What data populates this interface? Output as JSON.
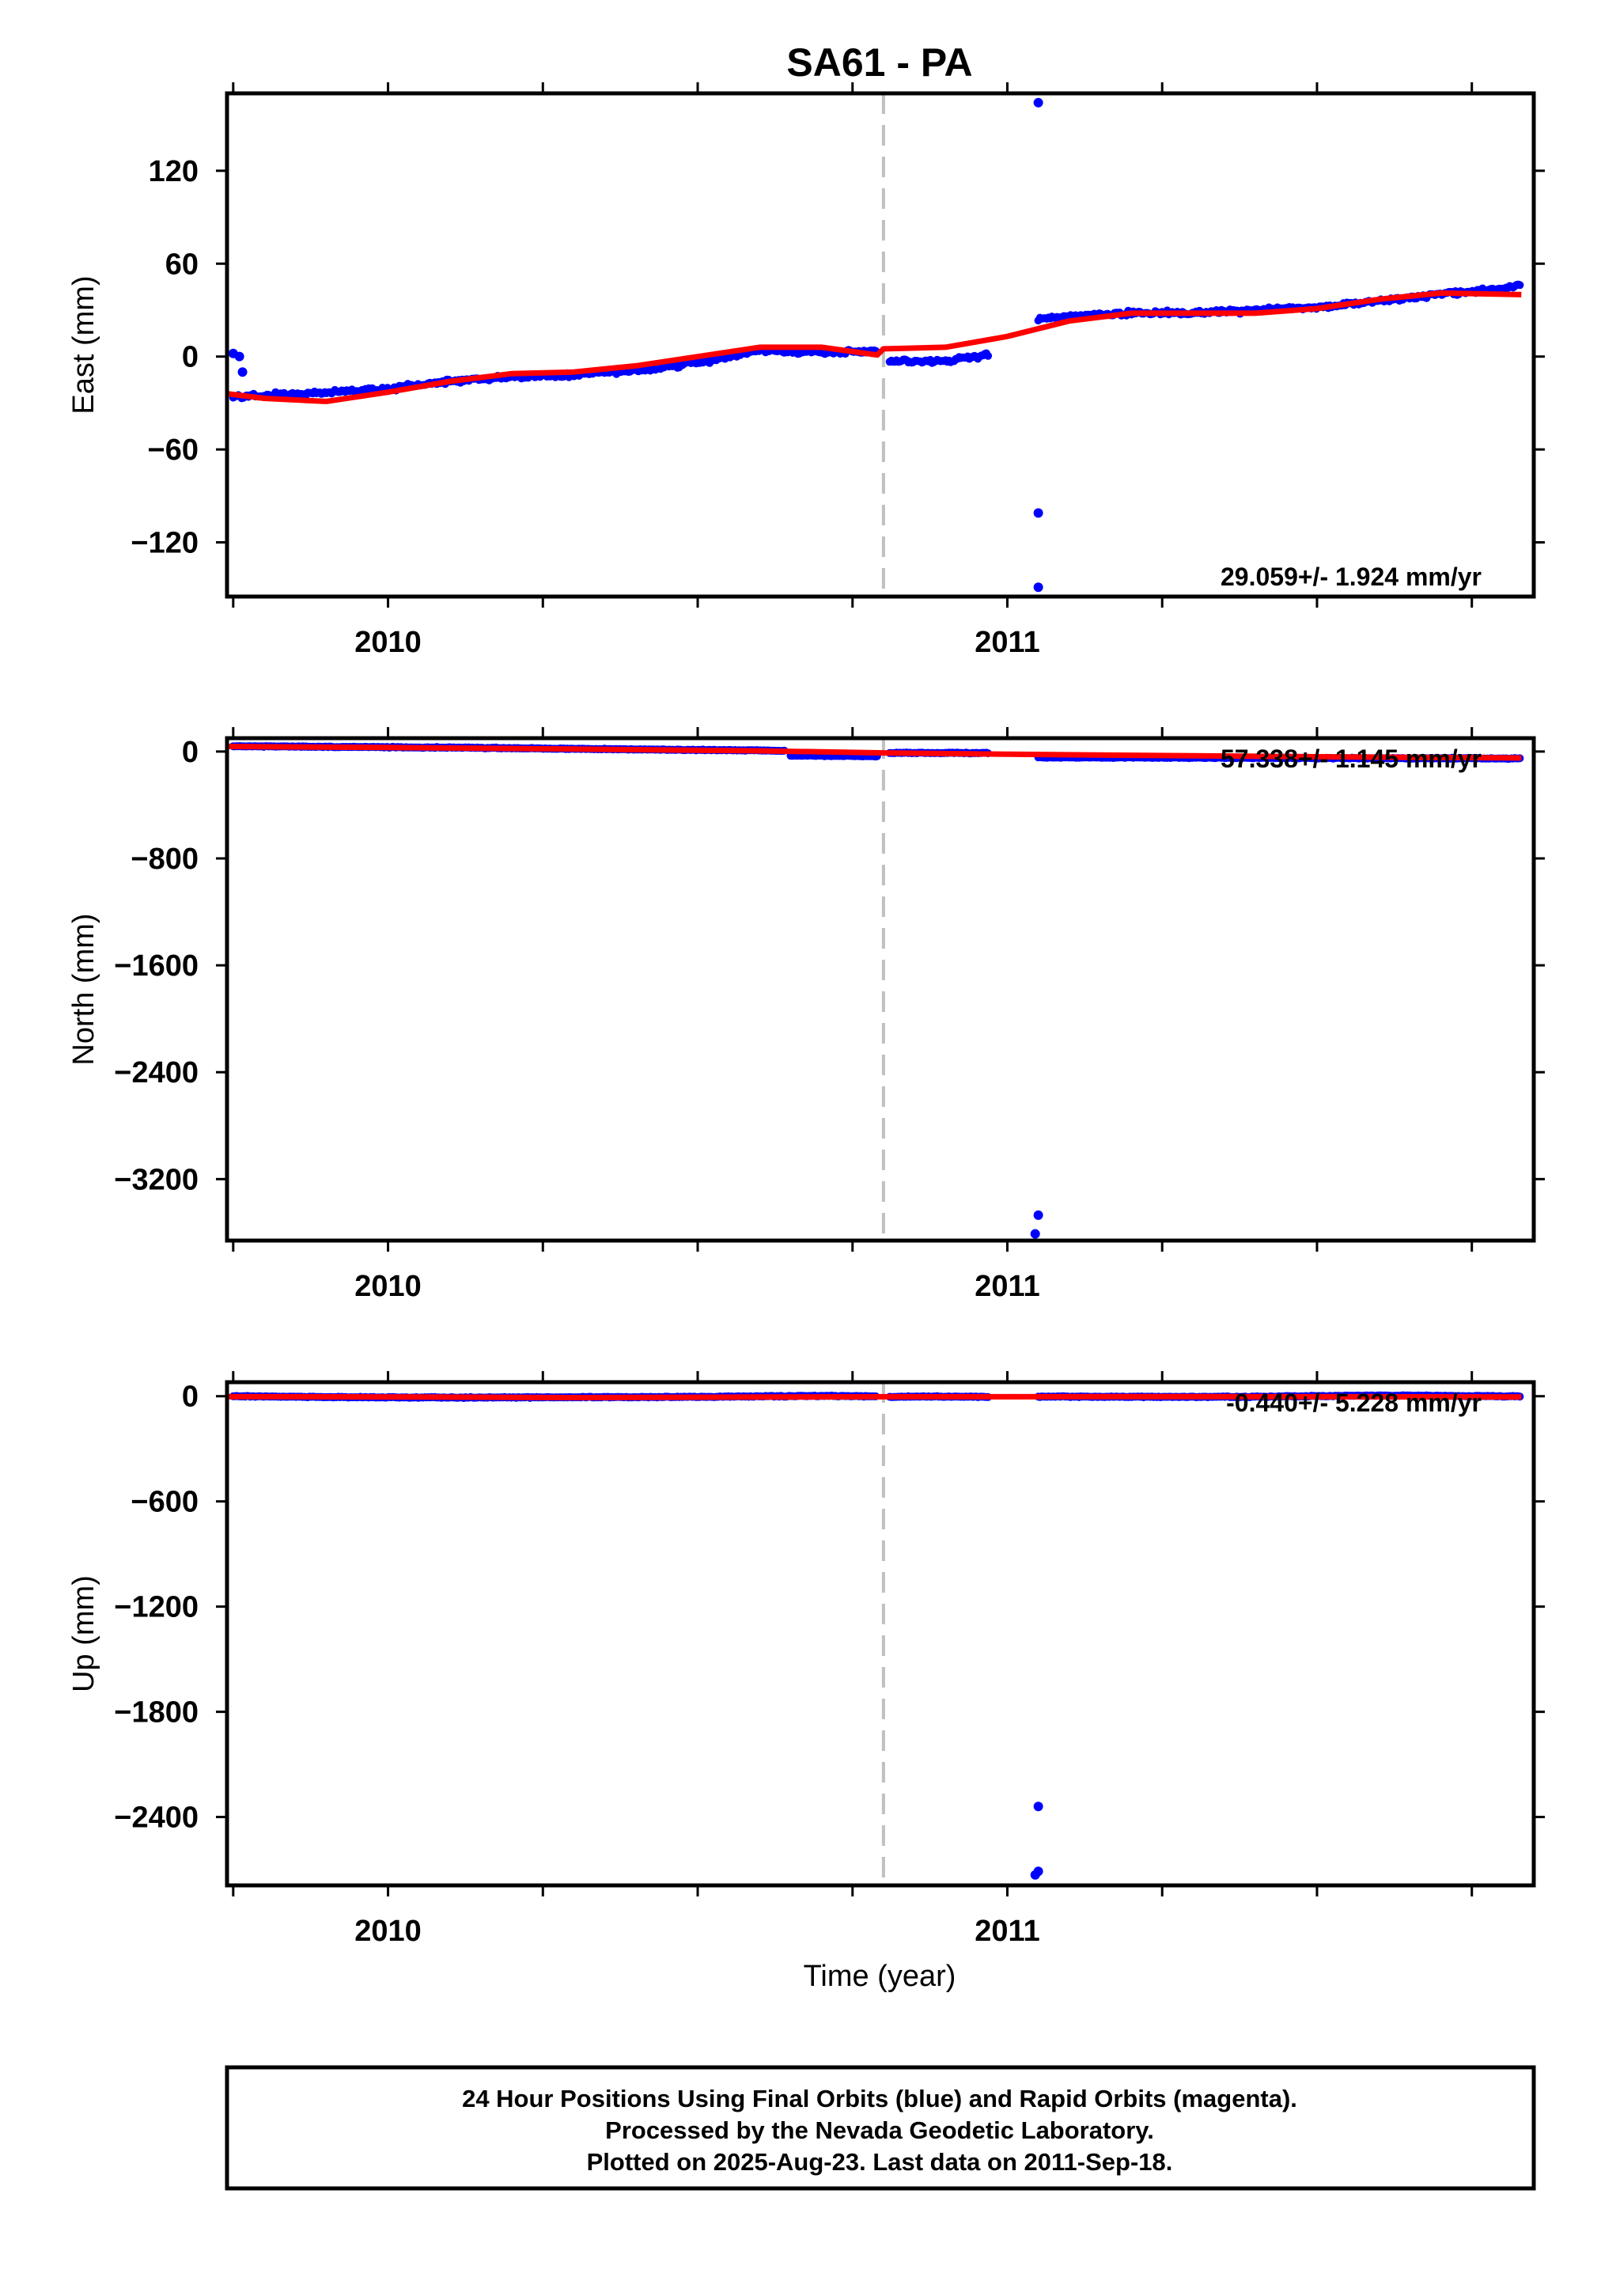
{
  "colors": {
    "final_orbits": "#0000ff",
    "rapid_orbits": "#ff00ff",
    "model_fit": "#ff0000",
    "equipment_change_line": "#c0c0c0",
    "frame": "#000000",
    "background": "#ffffff"
  },
  "footer": {
    "line1": "24 Hour Positions Using Final Orbits (blue) and Rapid Orbits (magenta).",
    "line2": "Processed by the Nevada Geodetic Laboratory.",
    "line3": "Plotted on 2025-Aug-23. Last data on 2011-Sep-18."
  },
  "chart_data": {
    "type": "scatter",
    "title": "SA61 - PA",
    "xlabel": "Time (year)",
    "xlim": [
      2009.74,
      2011.85
    ],
    "x_tick_labels": [
      "2010",
      "2011"
    ],
    "x_major_ticks": [
      2010,
      2011
    ],
    "x_minor_ticks": [
      2009.75,
      2010.25,
      2010.5,
      2010.75,
      2011.25,
      2011.5,
      2011.75
    ],
    "vertical_marker_x": 2010.8,
    "panels": [
      {
        "name": "east",
        "ylabel": "East (mm)",
        "ylim": [
          -155,
          170
        ],
        "y_ticks": [
          -120,
          -60,
          0,
          60,
          120
        ],
        "y_tick_labels": [
          "−120",
          "−60",
          "0",
          "60",
          "120"
        ],
        "rate_label": "29.059+/- 1.924 mm/yr",
        "final_orbit_segments": [
          {
            "x": [
              2009.75,
              2009.8,
              2009.9,
              2010.0,
              2010.1,
              2010.2,
              2010.3,
              2010.4,
              2010.5,
              2010.6,
              2010.7,
              2010.79
            ],
            "y": [
              -26,
              -25,
              -23,
              -21,
              -16,
              -13,
              -12,
              -9,
              -4,
              4,
              3,
              3
            ]
          },
          {
            "x": [
              2010.81,
              2010.9,
              2010.97
            ],
            "y": [
              -3,
              -3,
              1
            ]
          },
          {
            "x": [
              2011.05,
              2011.1,
              2011.2,
              2011.3,
              2011.4,
              2011.5,
              2011.6,
              2011.7,
              2011.8,
              2011.83
            ],
            "y": [
              24,
              26,
              28,
              28,
              30,
              32,
              36,
              40,
              44,
              47
            ]
          }
        ],
        "outliers": [
          {
            "x": 2009.75,
            "y": 2
          },
          {
            "x": 2009.76,
            "y": 0
          },
          {
            "x": 2009.765,
            "y": -10
          },
          {
            "x": 2011.05,
            "y": 164
          },
          {
            "x": 2011.05,
            "y": -101
          },
          {
            "x": 2011.05,
            "y": -149
          }
        ],
        "model_fit": {
          "x": [
            2009.74,
            2009.8,
            2009.9,
            2010.0,
            2010.1,
            2010.2,
            2010.3,
            2010.4,
            2010.5,
            2010.6,
            2010.7,
            2010.79,
            2010.8,
            2010.9,
            2011.0,
            2011.1,
            2011.2,
            2011.3,
            2011.4,
            2011.5,
            2011.6,
            2011.7,
            2011.83
          ],
          "y": [
            -24,
            -27,
            -29,
            -23,
            -16,
            -11,
            -10,
            -6,
            0,
            6,
            6,
            1,
            5,
            6,
            13,
            23,
            28,
            28,
            28,
            31,
            37,
            41,
            40
          ]
        }
      },
      {
        "name": "north",
        "ylabel": "North (mm)",
        "ylim": [
          -3660,
          100
        ],
        "y_ticks": [
          -3200,
          -2400,
          -1600,
          -800,
          0
        ],
        "y_tick_labels": [
          "−3200",
          "−2400",
          "−1600",
          "−800",
          "0"
        ],
        "rate_label": "57.338+/- 1.145 mm/yr",
        "final_orbit_segments": [
          {
            "x": [
              2009.75,
              2009.9,
              2010.1,
              2010.3,
              2010.5,
              2010.6,
              2010.64
            ],
            "y": [
              40,
              35,
              30,
              20,
              12,
              8,
              5
            ]
          },
          {
            "x": [
              2010.65,
              2010.7,
              2010.79
            ],
            "y": [
              -30,
              -32,
              -35
            ]
          },
          {
            "x": [
              2010.81,
              2010.9,
              2010.97
            ],
            "y": [
              -10,
              -10,
              -12
            ]
          },
          {
            "x": [
              2011.05,
              2011.2,
              2011.4,
              2011.6,
              2011.83
            ],
            "y": [
              -45,
              -45,
              -48,
              -50,
              -52
            ]
          }
        ],
        "outliers": [
          {
            "x": 2011.05,
            "y": -3470
          },
          {
            "x": 2011.045,
            "y": -3610
          }
        ],
        "model_fit": {
          "x": [
            2009.74,
            2010.0,
            2010.3,
            2010.6,
            2010.8,
            2011.0,
            2011.3,
            2011.6,
            2011.83
          ],
          "y": [
            38,
            30,
            18,
            5,
            -10,
            -20,
            -32,
            -42,
            -48
          ]
        }
      },
      {
        "name": "up",
        "ylabel": "Up (mm)",
        "ylim": [
          -2790,
          80
        ],
        "y_ticks": [
          -2400,
          -1800,
          -1200,
          -600,
          0
        ],
        "y_tick_labels": [
          "−2400",
          "−1800",
          "−1200",
          "−600",
          "0"
        ],
        "rate_label": "-0.440+/- 5.228 mm/yr",
        "final_orbit_segments": [
          {
            "x": [
              2009.75,
              2009.9,
              2010.1,
              2010.3,
              2010.5,
              2010.7,
              2010.79
            ],
            "y": [
              0,
              -5,
              -8,
              -6,
              -4,
              2,
              0
            ]
          },
          {
            "x": [
              2010.81,
              2010.9,
              2010.97
            ],
            "y": [
              -3,
              -2,
              -4
            ]
          },
          {
            "x": [
              2011.05,
              2011.2,
              2011.4,
              2011.6,
              2011.83
            ],
            "y": [
              -2,
              -4,
              -3,
              4,
              -1
            ]
          }
        ],
        "outliers": [
          {
            "x": 2011.05,
            "y": -2340
          },
          {
            "x": 2011.05,
            "y": -2710
          },
          {
            "x": 2011.045,
            "y": -2730
          }
        ],
        "model_fit": {
          "x": [
            2009.74,
            2010.0,
            2010.3,
            2010.6,
            2010.8,
            2011.0,
            2011.3,
            2011.6,
            2011.83
          ],
          "y": [
            -2,
            -4,
            -8,
            -5,
            -3,
            -3,
            -2,
            -3,
            -4
          ]
        }
      }
    ]
  }
}
